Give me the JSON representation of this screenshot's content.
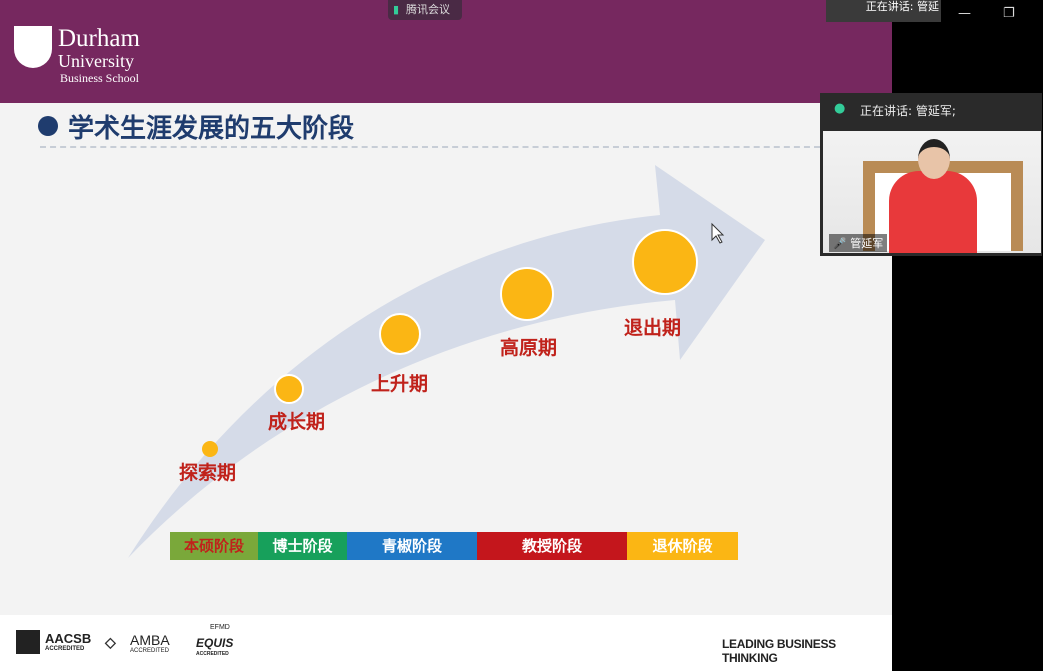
{
  "window": {
    "app_name": "腾讯会议",
    "speaking_label": "正在讲话: 管延",
    "minimize": "—",
    "restore": "❐"
  },
  "video_panel": {
    "speaking_label": "正在讲话: 管延军;",
    "participant_name": "管延军"
  },
  "slide": {
    "logo": {
      "line1": "Durham",
      "line2": "University",
      "line3": "Business School"
    },
    "title": "学术生涯发展的五大阶段",
    "periods": [
      "探索期",
      "成长期",
      "上升期",
      "高原期",
      "退出期"
    ],
    "stages": [
      {
        "label": "本硕阶段",
        "color": "#7aa83a"
      },
      {
        "label": "博士阶段",
        "color": "#17a05b"
      },
      {
        "label": "青椒阶段",
        "color": "#1f78c6"
      },
      {
        "label": "教授阶段",
        "color": "#c4161c"
      },
      {
        "label": "退休阶段",
        "color": "#fbb614"
      }
    ],
    "footer": {
      "aacsb": "AACSB",
      "aacsb_sub": "ACCREDITED",
      "amba": "AMBA",
      "amba_sub": "ACCREDITED",
      "efmd": "EFMD",
      "equis": "EQUIS",
      "equis_sub": "ACCREDITED",
      "tagline": "LEADING BUSINESS THINKING"
    }
  },
  "colors": {
    "header": "#76285f",
    "circle": "#fbb614",
    "label": "#c0221b",
    "title": "#1f3c6e"
  }
}
